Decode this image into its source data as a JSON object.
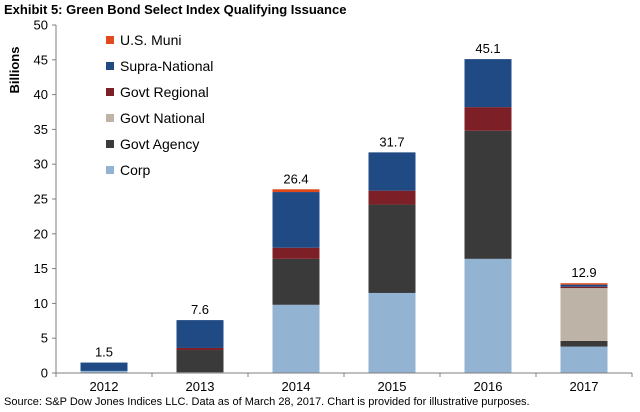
{
  "title": "Exhibit 5: Green Bond Select Index Qualifying Issuance",
  "source": "Source: S&P Dow Jones Indices LLC. Data as of March 28, 2017.  Chart is provided for illustrative purposes.",
  "chart_data": {
    "type": "bar",
    "stacked": true,
    "ylabel": "Billions",
    "xlabel": "",
    "ylim": [
      0,
      50
    ],
    "yticks": [
      0,
      5,
      10,
      15,
      20,
      25,
      30,
      35,
      40,
      45,
      50
    ],
    "grid": false,
    "legend_position": "top-left",
    "categories": [
      "2012",
      "2013",
      "2014",
      "2015",
      "2016",
      "2017"
    ],
    "totals": [
      "1.5",
      "7.6",
      "26.4",
      "31.7",
      "45.1",
      "12.9"
    ],
    "series": [
      {
        "name": "Corp",
        "color": "#93B3D3",
        "values": [
          0.3,
          0.1,
          9.8,
          11.5,
          16.4,
          3.8
        ]
      },
      {
        "name": "Govt Agency",
        "color": "#3A3A3A",
        "values": [
          0,
          3.2,
          6.6,
          12.7,
          18.4,
          0.8
        ]
      },
      {
        "name": "Govt National",
        "color": "#BDB3A6",
        "values": [
          0,
          0,
          0,
          0,
          0,
          7.6
        ]
      },
      {
        "name": "Govt Regional",
        "color": "#7C1F27",
        "values": [
          0,
          0.3,
          1.6,
          2.0,
          3.4,
          0.2
        ]
      },
      {
        "name": "Supra-National",
        "color": "#1F4A84",
        "values": [
          1.2,
          4.0,
          8.0,
          5.5,
          6.9,
          0.3
        ]
      },
      {
        "name": "U.S. Muni",
        "color": "#E04A1A",
        "values": [
          0,
          0,
          0.4,
          0,
          0,
          0.2
        ]
      }
    ]
  }
}
